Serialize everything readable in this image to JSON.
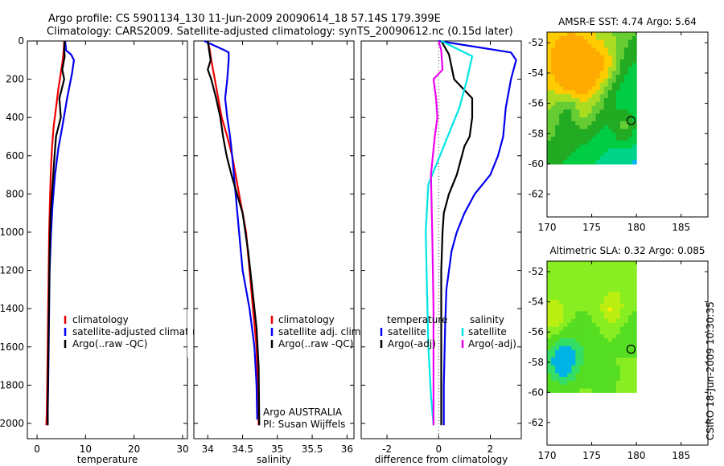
{
  "header": {
    "line1": "Argo profile: CS 5901134_130 11-Jun-2009 20090614_18 57.14S 179.399E",
    "line2": "Climatology: CARS2009. Satellite-adjusted climatology: synTS_20090612.nc (0.15d later)"
  },
  "side_label": "CSIRO 18-Jun-2009 10:30:35",
  "colors": {
    "climatology": "#ee0000",
    "satellite": "#0000ee",
    "argo": "#000000",
    "salinity_satellite": "#00e5e5",
    "salinity_argo": "#ee00ee",
    "zero_line": "#444444"
  },
  "chart_data": [
    {
      "type": "line",
      "name": "temperature",
      "xlabel": "temperature",
      "ylabel": "",
      "xlim": [
        -2,
        31
      ],
      "ylim": [
        2080,
        0
      ],
      "x_ticks": [
        0,
        10,
        20,
        30
      ],
      "y_ticks": [
        0,
        200,
        400,
        600,
        800,
        1000,
        1200,
        1400,
        1600,
        1800,
        2000
      ],
      "legend": [
        "climatology",
        "satellite-adjusted climatolog",
        "Argo(..raw -QC)"
      ],
      "series": [
        {
          "name": "climatology",
          "color": "#ee0000",
          "x": [
            5.6,
            5.5,
            5.3,
            5.0,
            4.4,
            3.9,
            3.4,
            3.1,
            2.9,
            2.7,
            2.5,
            2.4,
            2.3,
            2.2,
            2.1,
            2.0,
            1.9
          ],
          "y": [
            0,
            50,
            100,
            150,
            250,
            350,
            450,
            550,
            650,
            800,
            1000,
            1200,
            1400,
            1600,
            1800,
            1950,
            2010
          ]
        },
        {
          "name": "satellite-adjusted climatolog",
          "color": "#0000ee",
          "x": [
            5.8,
            6.0,
            7.0,
            7.6,
            7.2,
            6.2,
            5.2,
            4.4,
            3.7,
            3.2,
            2.9,
            2.6,
            2.5,
            2.4,
            2.3,
            2.2,
            2.2
          ],
          "y": [
            0,
            50,
            70,
            100,
            170,
            300,
            450,
            560,
            700,
            850,
            1000,
            1200,
            1400,
            1600,
            1800,
            1950,
            2010
          ]
        },
        {
          "name": "Argo(..raw -QC)",
          "color": "#000000",
          "x": [
            5.7,
            5.6,
            5.7,
            5.2,
            5.6,
            4.6,
            4.9,
            3.9,
            3.6,
            3.2,
            2.8,
            2.6,
            2.5,
            2.4,
            2.3,
            2.2,
            2.2
          ],
          "y": [
            0,
            50,
            80,
            150,
            200,
            300,
            400,
            500,
            600,
            750,
            900,
            1100,
            1300,
            1500,
            1700,
            1900,
            2010
          ]
        }
      ]
    },
    {
      "type": "line",
      "name": "salinity",
      "xlabel": "salinity",
      "ylabel": "",
      "xlim": [
        33.8,
        36.1
      ],
      "ylim": [
        2080,
        0
      ],
      "x_ticks": [
        34,
        34.5,
        35,
        35.5,
        36
      ],
      "y_ticks": [
        0,
        200,
        400,
        600,
        800,
        1000,
        1200,
        1400,
        1600,
        1800,
        2000
      ],
      "legend": [
        "climatology",
        "satellite adj. clim.",
        "Argo(..raw -QC)"
      ],
      "annotation": [
        "Argo AUSTRALIA",
        "PI: Susan Wijffels"
      ],
      "series": [
        {
          "name": "climatology",
          "color": "#ee0000",
          "x": [
            34.0,
            34.03,
            34.05,
            34.1,
            34.15,
            34.2,
            34.28,
            34.35,
            34.4,
            34.45,
            34.5,
            34.55,
            34.6,
            34.65,
            34.7,
            34.72,
            34.73
          ],
          "y": [
            0,
            50,
            100,
            200,
            300,
            400,
            500,
            600,
            700,
            800,
            900,
            1000,
            1200,
            1400,
            1600,
            1800,
            2010
          ]
        },
        {
          "name": "satellite adj. clim.",
          "color": "#0000ee",
          "x": [
            33.95,
            34.25,
            34.3,
            34.3,
            34.28,
            34.25,
            34.28,
            34.32,
            34.35,
            34.4,
            34.45,
            34.5,
            34.6,
            34.67,
            34.7,
            34.71
          ],
          "y": [
            0,
            50,
            60,
            100,
            200,
            300,
            400,
            500,
            600,
            800,
            1000,
            1200,
            1400,
            1600,
            1800,
            1980
          ]
        },
        {
          "name": "Argo(..raw -QC)",
          "color": "#000000",
          "x": [
            34.0,
            34.02,
            34.04,
            34.0,
            34.05,
            34.12,
            34.18,
            34.22,
            34.27,
            34.34,
            34.42,
            34.5,
            34.58,
            34.64,
            34.7,
            34.73,
            34.74
          ],
          "y": [
            0,
            50,
            100,
            150,
            200,
            300,
            400,
            500,
            600,
            700,
            800,
            900,
            1100,
            1300,
            1500,
            1700,
            2010
          ]
        }
      ]
    },
    {
      "type": "line",
      "name": "difference",
      "xlabel": "difference from climatology",
      "ylabel": "",
      "xlim": [
        -3.0,
        3.2
      ],
      "ylim": [
        2080,
        0
      ],
      "x_ticks": [
        -2,
        0,
        2
      ],
      "y_ticks": [
        0,
        200,
        400,
        600,
        800,
        1000,
        1200,
        1400,
        1600,
        1800,
        2000
      ],
      "legend_left_title": "temperature",
      "legend_left": [
        "satellite",
        "Argo(-adj)"
      ],
      "legend_right_title": "salinity",
      "legend_right": [
        "satellite",
        "Argo(-adj)"
      ],
      "series": [
        {
          "name": "temperature satellite",
          "color": "#0000ee",
          "x": [
            0.0,
            2.8,
            3.0,
            2.8,
            2.6,
            2.5,
            2.3,
            2.0,
            1.4,
            1.0,
            0.7,
            0.5,
            0.3,
            0.25,
            0.2,
            0.2
          ],
          "y": [
            0,
            60,
            100,
            200,
            350,
            500,
            600,
            700,
            800,
            900,
            1000,
            1100,
            1300,
            1500,
            1800,
            2010
          ]
        },
        {
          "name": "temperature Argo(-adj)",
          "color": "#000000",
          "x": [
            0.1,
            0.4,
            0.6,
            1.3,
            1.3,
            1.2,
            1.0,
            0.9,
            0.7,
            0.4,
            0.2,
            0.15,
            0.1,
            0.1,
            0.1
          ],
          "y": [
            0,
            70,
            200,
            300,
            400,
            500,
            550,
            600,
            700,
            800,
            900,
            1000,
            1200,
            1500,
            2010
          ]
        },
        {
          "name": "salinity satellite",
          "color": "#00e5e5",
          "x": [
            0.1,
            1.3,
            1.1,
            0.8,
            0.5,
            0.2,
            -0.1,
            -0.4,
            -0.5,
            -0.45,
            -0.4,
            -0.3,
            -0.2
          ],
          "y": [
            0,
            80,
            200,
            350,
            450,
            550,
            650,
            750,
            1000,
            1300,
            1600,
            1850,
            2010
          ]
        },
        {
          "name": "salinity Argo(-adj)",
          "color": "#ee00ee",
          "x": [
            0.0,
            0.1,
            0.15,
            -0.2,
            -0.1,
            -0.05,
            -0.15,
            -0.3,
            -0.25,
            -0.2,
            -0.2
          ],
          "y": [
            0,
            50,
            150,
            200,
            300,
            400,
            500,
            700,
            1000,
            1400,
            2010
          ]
        }
      ]
    },
    {
      "type": "heatmap",
      "name": "sst_map",
      "title": "AMSR-E SST: 4.74 Argo: 5.64",
      "xlim": [
        170,
        188
      ],
      "ylim": [
        -63.5,
        -51.3
      ],
      "x_ticks": [
        170,
        175,
        180,
        185
      ],
      "y_ticks": [
        -52,
        -54,
        -56,
        -58,
        -60,
        -62
      ],
      "data_extent": {
        "lon": [
          170,
          180
        ],
        "lat": [
          -60,
          -51.3
        ]
      },
      "marker": {
        "lon": 179.4,
        "lat": -57.14
      },
      "palette": [
        "#0066ff",
        "#00b3ff",
        "#00d48a",
        "#00cc44",
        "#22aa22",
        "#66cc33",
        "#aadd22",
        "#ffcc00",
        "#ffaa00"
      ]
    },
    {
      "type": "heatmap",
      "name": "sla_map",
      "title": "Altimetric SLA: 0.32 Argo: 0.085",
      "xlim": [
        170,
        188
      ],
      "ylim": [
        -63.5,
        -51.3
      ],
      "x_ticks": [
        170,
        175,
        180,
        185
      ],
      "y_ticks": [
        -52,
        -54,
        -56,
        -58,
        -60,
        -62
      ],
      "data_extent": {
        "lon": [
          170,
          180
        ],
        "lat": [
          -60,
          -51.3
        ]
      },
      "marker": {
        "lon": 179.4,
        "lat": -57.14
      },
      "palette": [
        "#00b3e6",
        "#33dd66",
        "#55dd22",
        "#88ee22",
        "#bbee11",
        "#ffee00",
        "#ffbb00"
      ]
    }
  ]
}
